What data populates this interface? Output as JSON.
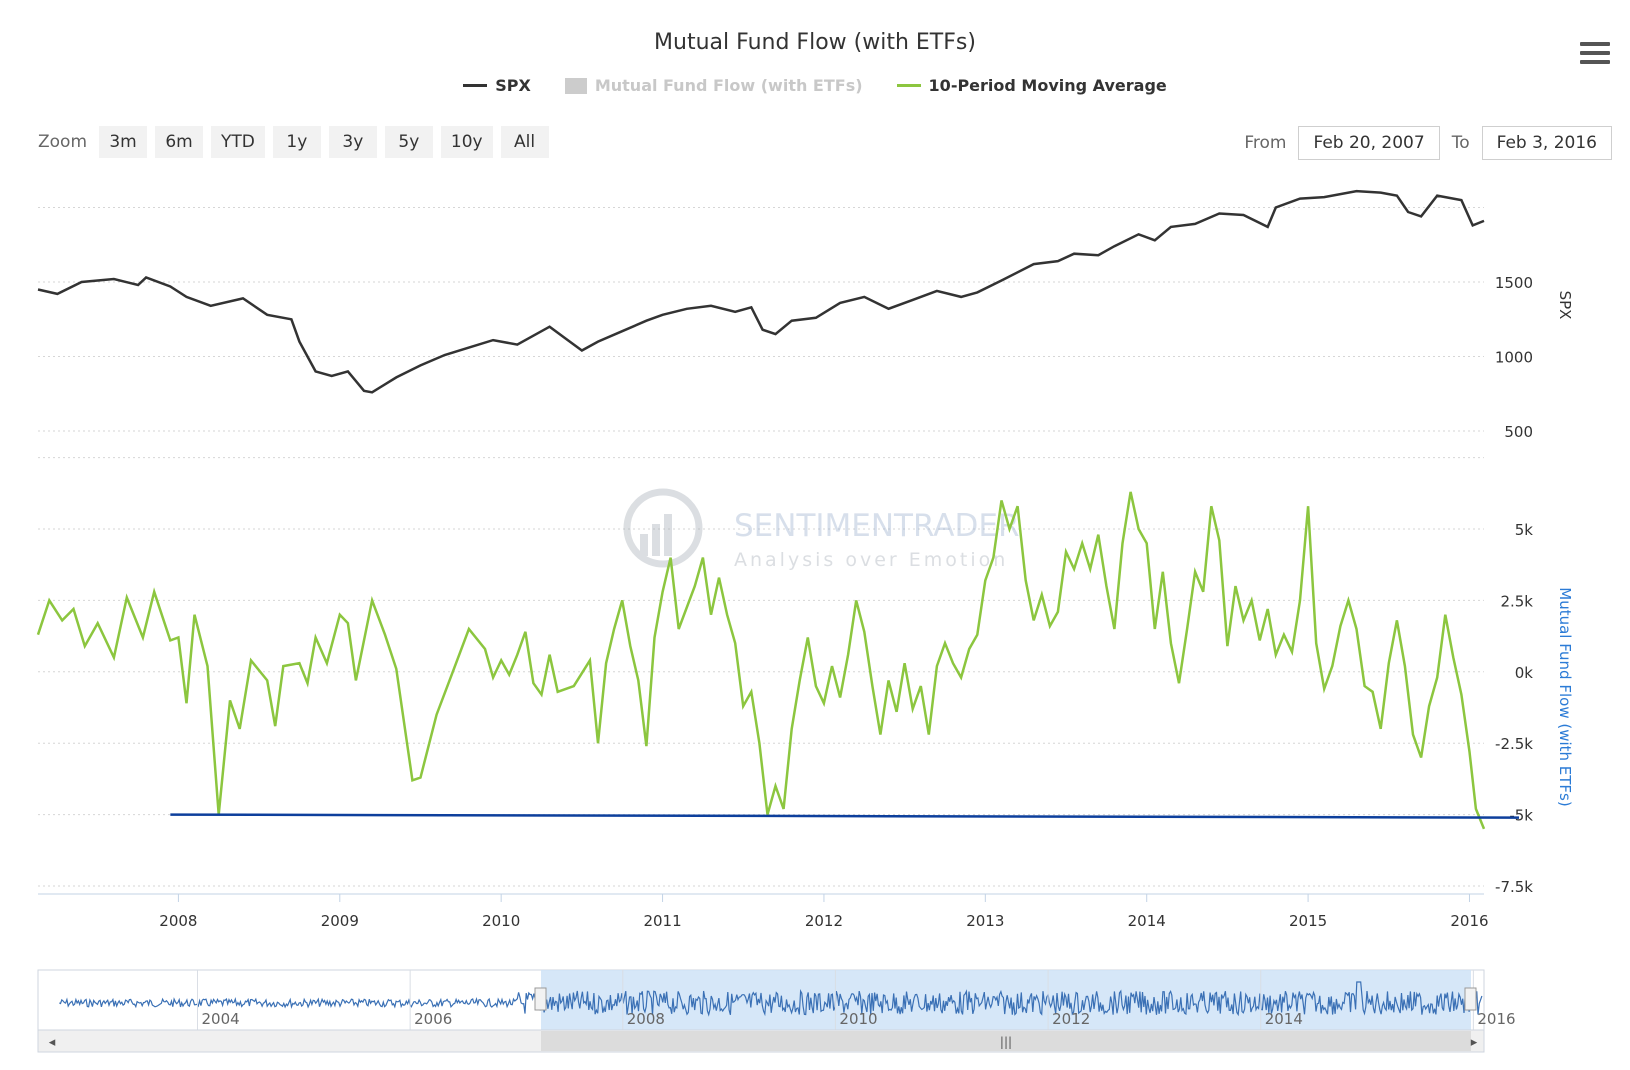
{
  "title": "Mutual Fund Flow (with ETFs)",
  "menu_icon": "hamburger-menu-icon",
  "legend": [
    {
      "label": "SPX",
      "color": "#333333",
      "visible": true
    },
    {
      "label": "Mutual Fund Flow (with ETFs)",
      "color": "#cccccc",
      "visible": false
    },
    {
      "label": "10-Period Moving Average",
      "color": "#8cc63f",
      "visible": true
    }
  ],
  "zoom": {
    "label": "Zoom",
    "buttons": [
      "3m",
      "6m",
      "YTD",
      "1y",
      "3y",
      "5y",
      "10y",
      "All"
    ]
  },
  "range": {
    "from_label": "From",
    "from_value": "Feb 20, 2007",
    "to_label": "To",
    "to_value": "Feb 3, 2016"
  },
  "watermark": {
    "line1": "SENTIMENTRADER",
    "line2": "Analysis over Emotion"
  },
  "chart_data": [
    {
      "type": "line",
      "name": "SPX",
      "ylabel": "SPX",
      "yticks": [
        "500",
        "1000",
        "1500"
      ],
      "ylim": [
        500,
        2000
      ],
      "xlim": [
        2007.13,
        2016.09
      ],
      "color": "#333333",
      "points": [
        [
          2007.13,
          1450
        ],
        [
          2007.25,
          1420
        ],
        [
          2007.4,
          1500
        ],
        [
          2007.6,
          1520
        ],
        [
          2007.75,
          1480
        ],
        [
          2007.8,
          1530
        ],
        [
          2007.95,
          1470
        ],
        [
          2008.05,
          1400
        ],
        [
          2008.2,
          1340
        ],
        [
          2008.4,
          1390
        ],
        [
          2008.55,
          1280
        ],
        [
          2008.7,
          1250
        ],
        [
          2008.75,
          1100
        ],
        [
          2008.85,
          900
        ],
        [
          2008.95,
          870
        ],
        [
          2009.05,
          900
        ],
        [
          2009.15,
          770
        ],
        [
          2009.2,
          760
        ],
        [
          2009.35,
          860
        ],
        [
          2009.5,
          940
        ],
        [
          2009.65,
          1010
        ],
        [
          2009.8,
          1060
        ],
        [
          2009.95,
          1110
        ],
        [
          2010.1,
          1080
        ],
        [
          2010.3,
          1200
        ],
        [
          2010.4,
          1120
        ],
        [
          2010.5,
          1040
        ],
        [
          2010.6,
          1100
        ],
        [
          2010.75,
          1170
        ],
        [
          2010.9,
          1240
        ],
        [
          2011.0,
          1280
        ],
        [
          2011.15,
          1320
        ],
        [
          2011.3,
          1340
        ],
        [
          2011.45,
          1300
        ],
        [
          2011.55,
          1330
        ],
        [
          2011.62,
          1180
        ],
        [
          2011.7,
          1150
        ],
        [
          2011.8,
          1240
        ],
        [
          2011.95,
          1260
        ],
        [
          2012.1,
          1360
        ],
        [
          2012.25,
          1400
        ],
        [
          2012.4,
          1320
        ],
        [
          2012.55,
          1380
        ],
        [
          2012.7,
          1440
        ],
        [
          2012.85,
          1400
        ],
        [
          2012.95,
          1430
        ],
        [
          2013.1,
          1510
        ],
        [
          2013.3,
          1620
        ],
        [
          2013.45,
          1640
        ],
        [
          2013.55,
          1690
        ],
        [
          2013.7,
          1680
        ],
        [
          2013.8,
          1740
        ],
        [
          2013.95,
          1820
        ],
        [
          2014.05,
          1780
        ],
        [
          2014.15,
          1870
        ],
        [
          2014.3,
          1890
        ],
        [
          2014.45,
          1960
        ],
        [
          2014.6,
          1950
        ],
        [
          2014.75,
          1870
        ],
        [
          2014.8,
          2000
        ],
        [
          2014.95,
          2060
        ],
        [
          2015.1,
          2070
        ],
        [
          2015.3,
          2110
        ],
        [
          2015.45,
          2100
        ],
        [
          2015.55,
          2080
        ],
        [
          2015.62,
          1970
        ],
        [
          2015.7,
          1940
        ],
        [
          2015.8,
          2080
        ],
        [
          2015.95,
          2050
        ],
        [
          2016.02,
          1880
        ],
        [
          2016.09,
          1910
        ]
      ]
    },
    {
      "type": "line",
      "name": "10-Period Moving Average",
      "ylabel": "Mutual Fund Flow (with ETFs)",
      "yticks": [
        "-7.5k",
        "-5k",
        "-2.5k",
        "0k",
        "2.5k",
        "5k"
      ],
      "ylim": [
        -7500,
        7500
      ],
      "xlim": [
        2007.13,
        2016.09
      ],
      "xticks": [
        "2008",
        "2009",
        "2010",
        "2011",
        "2012",
        "2013",
        "2014",
        "2015",
        "2016"
      ],
      "color": "#8cc63f",
      "points": [
        [
          2007.13,
          1300
        ],
        [
          2007.2,
          2500
        ],
        [
          2007.28,
          1800
        ],
        [
          2007.35,
          2200
        ],
        [
          2007.42,
          900
        ],
        [
          2007.5,
          1700
        ],
        [
          2007.6,
          500
        ],
        [
          2007.68,
          2600
        ],
        [
          2007.78,
          1200
        ],
        [
          2007.85,
          2800
        ],
        [
          2007.95,
          1100
        ],
        [
          2008.0,
          1200
        ],
        [
          2008.05,
          -1100
        ],
        [
          2008.1,
          2000
        ],
        [
          2008.18,
          200
        ],
        [
          2008.25,
          -5000
        ],
        [
          2008.32,
          -1000
        ],
        [
          2008.38,
          -2000
        ],
        [
          2008.45,
          400
        ],
        [
          2008.55,
          -300
        ],
        [
          2008.6,
          -1900
        ],
        [
          2008.65,
          200
        ],
        [
          2008.75,
          300
        ],
        [
          2008.8,
          -400
        ],
        [
          2008.85,
          1200
        ],
        [
          2008.92,
          300
        ],
        [
          2009.0,
          2000
        ],
        [
          2009.05,
          1700
        ],
        [
          2009.1,
          -300
        ],
        [
          2009.2,
          2500
        ],
        [
          2009.28,
          1300
        ],
        [
          2009.35,
          100
        ],
        [
          2009.45,
          -3800
        ],
        [
          2009.5,
          -3700
        ],
        [
          2009.6,
          -1500
        ],
        [
          2009.7,
          0
        ],
        [
          2009.8,
          1500
        ],
        [
          2009.9,
          800
        ],
        [
          2009.95,
          -200
        ],
        [
          2010.0,
          400
        ],
        [
          2010.05,
          -100
        ],
        [
          2010.1,
          600
        ],
        [
          2010.15,
          1400
        ],
        [
          2010.2,
          -400
        ],
        [
          2010.25,
          -800
        ],
        [
          2010.3,
          600
        ],
        [
          2010.35,
          -700
        ],
        [
          2010.45,
          -500
        ],
        [
          2010.55,
          400
        ],
        [
          2010.6,
          -2500
        ],
        [
          2010.65,
          300
        ],
        [
          2010.7,
          1500
        ],
        [
          2010.75,
          2500
        ],
        [
          2010.8,
          900
        ],
        [
          2010.85,
          -300
        ],
        [
          2010.9,
          -2600
        ],
        [
          2010.95,
          1200
        ],
        [
          2011.0,
          2800
        ],
        [
          2011.05,
          4000
        ],
        [
          2011.1,
          1500
        ],
        [
          2011.2,
          3000
        ],
        [
          2011.25,
          4000
        ],
        [
          2011.3,
          2000
        ],
        [
          2011.35,
          3300
        ],
        [
          2011.4,
          2000
        ],
        [
          2011.45,
          1000
        ],
        [
          2011.5,
          -1200
        ],
        [
          2011.55,
          -700
        ],
        [
          2011.6,
          -2500
        ],
        [
          2011.65,
          -5000
        ],
        [
          2011.7,
          -4000
        ],
        [
          2011.75,
          -4800
        ],
        [
          2011.8,
          -2000
        ],
        [
          2011.85,
          -300
        ],
        [
          2011.9,
          1200
        ],
        [
          2011.95,
          -500
        ],
        [
          2012.0,
          -1100
        ],
        [
          2012.05,
          200
        ],
        [
          2012.1,
          -900
        ],
        [
          2012.15,
          600
        ],
        [
          2012.2,
          2500
        ],
        [
          2012.25,
          1400
        ],
        [
          2012.3,
          -500
        ],
        [
          2012.35,
          -2200
        ],
        [
          2012.4,
          -300
        ],
        [
          2012.45,
          -1400
        ],
        [
          2012.5,
          300
        ],
        [
          2012.55,
          -1300
        ],
        [
          2012.6,
          -500
        ],
        [
          2012.65,
          -2200
        ],
        [
          2012.7,
          200
        ],
        [
          2012.75,
          1000
        ],
        [
          2012.8,
          300
        ],
        [
          2012.85,
          -200
        ],
        [
          2012.9,
          800
        ],
        [
          2012.95,
          1300
        ],
        [
          2013.0,
          3200
        ],
        [
          2013.05,
          4000
        ],
        [
          2013.1,
          6000
        ],
        [
          2013.15,
          5000
        ],
        [
          2013.2,
          5800
        ],
        [
          2013.25,
          3200
        ],
        [
          2013.3,
          1800
        ],
        [
          2013.35,
          2700
        ],
        [
          2013.4,
          1600
        ],
        [
          2013.45,
          2100
        ],
        [
          2013.5,
          4200
        ],
        [
          2013.55,
          3600
        ],
        [
          2013.6,
          4500
        ],
        [
          2013.65,
          3600
        ],
        [
          2013.7,
          4800
        ],
        [
          2013.75,
          3000
        ],
        [
          2013.8,
          1500
        ],
        [
          2013.85,
          4500
        ],
        [
          2013.9,
          6300
        ],
        [
          2013.95,
          5000
        ],
        [
          2014.0,
          4500
        ],
        [
          2014.05,
          1500
        ],
        [
          2014.1,
          3500
        ],
        [
          2014.15,
          1000
        ],
        [
          2014.2,
          -400
        ],
        [
          2014.25,
          1500
        ],
        [
          2014.3,
          3500
        ],
        [
          2014.35,
          2800
        ],
        [
          2014.4,
          5800
        ],
        [
          2014.45,
          4600
        ],
        [
          2014.5,
          900
        ],
        [
          2014.55,
          3000
        ],
        [
          2014.6,
          1800
        ],
        [
          2014.65,
          2500
        ],
        [
          2014.7,
          1100
        ],
        [
          2014.75,
          2200
        ],
        [
          2014.8,
          600
        ],
        [
          2014.85,
          1300
        ],
        [
          2014.9,
          700
        ],
        [
          2014.95,
          2500
        ],
        [
          2015.0,
          5800
        ],
        [
          2015.05,
          1000
        ],
        [
          2015.1,
          -600
        ],
        [
          2015.15,
          200
        ],
        [
          2015.2,
          1600
        ],
        [
          2015.25,
          2500
        ],
        [
          2015.3,
          1500
        ],
        [
          2015.35,
          -500
        ],
        [
          2015.4,
          -700
        ],
        [
          2015.45,
          -2000
        ],
        [
          2015.5,
          300
        ],
        [
          2015.55,
          1800
        ],
        [
          2015.6,
          200
        ],
        [
          2015.65,
          -2200
        ],
        [
          2015.7,
          -3000
        ],
        [
          2015.75,
          -1200
        ],
        [
          2015.8,
          -200
        ],
        [
          2015.85,
          2000
        ],
        [
          2015.9,
          500
        ],
        [
          2015.95,
          -800
        ],
        [
          2016.0,
          -2800
        ],
        [
          2016.04,
          -4800
        ],
        [
          2016.09,
          -5500
        ]
      ]
    }
  ],
  "reference_line": {
    "value": -5000,
    "color": "#0d3f9c"
  },
  "navigator": {
    "tick_labels": [
      "2004",
      "2006",
      "2008",
      "2010",
      "2012",
      "2014",
      "2016"
    ],
    "handle_grip": "|||"
  }
}
